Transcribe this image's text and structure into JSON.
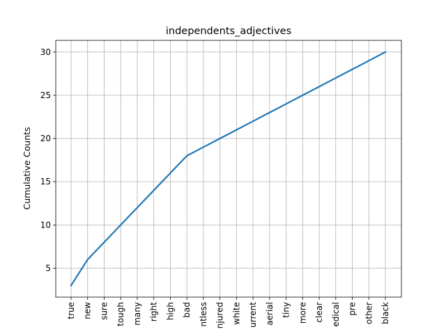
{
  "chart_data": {
    "type": "line",
    "title": "independents_adjectives",
    "xlabel": "",
    "ylabel": "Cumulative Counts",
    "categories": [
      "true",
      "new",
      "sure",
      "tough",
      "many",
      "right",
      "high",
      "bad",
      "ntless",
      "njured",
      "white",
      "urrent",
      "aerial",
      "tiny",
      "more",
      "clear",
      "edical",
      "pre",
      "other",
      "black"
    ],
    "series": [
      {
        "name": "Cumulative Counts",
        "values": [
          3,
          6,
          8,
          10,
          12,
          14,
          16,
          18,
          19,
          20,
          21,
          22,
          23,
          24,
          25,
          26,
          27,
          28,
          29,
          30
        ]
      }
    ],
    "yticks": [
      5,
      10,
      15,
      20,
      25,
      30
    ],
    "ylim": [
      1.65,
      31.35
    ],
    "grid": true,
    "line_color": "#1f77b4"
  }
}
